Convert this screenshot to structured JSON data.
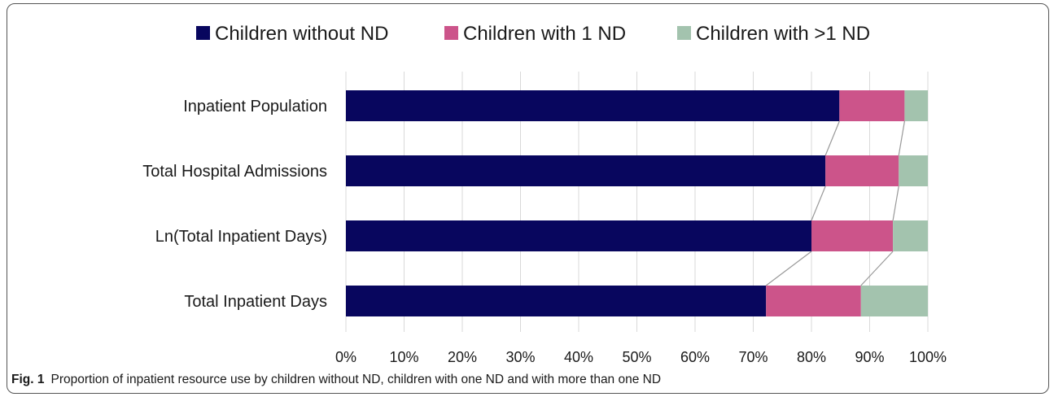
{
  "chart_data": {
    "type": "bar",
    "orientation": "horizontal",
    "stacked": "percent",
    "categories": [
      "Inpatient Population",
      "Total Hospital Admissions",
      "Ln(Total Inpatient Days)",
      "Total Inpatient Days"
    ],
    "series": [
      {
        "name": "Children without ND",
        "values": [
          84.8,
          82.4,
          80.0,
          72.2
        ],
        "color": "#08065e"
      },
      {
        "name": "Children with 1 ND",
        "values": [
          11.2,
          12.6,
          14.0,
          16.3
        ],
        "color": "#cc548a"
      },
      {
        "name": "Children with >1 ND",
        "values": [
          4.0,
          5.0,
          6.0,
          11.5
        ],
        "color": "#a3c3ae"
      }
    ],
    "xticks": [
      "0%",
      "10%",
      "20%",
      "30%",
      "40%",
      "50%",
      "60%",
      "70%",
      "80%",
      "90%",
      "100%"
    ],
    "xlim": [
      0,
      100
    ],
    "grid": "vertical",
    "legend": "top",
    "series_lines": true
  },
  "caption": {
    "label": "Fig. 1",
    "text": "Proportion of inpatient resource use by children without ND, children with one ND and with more than one ND"
  }
}
